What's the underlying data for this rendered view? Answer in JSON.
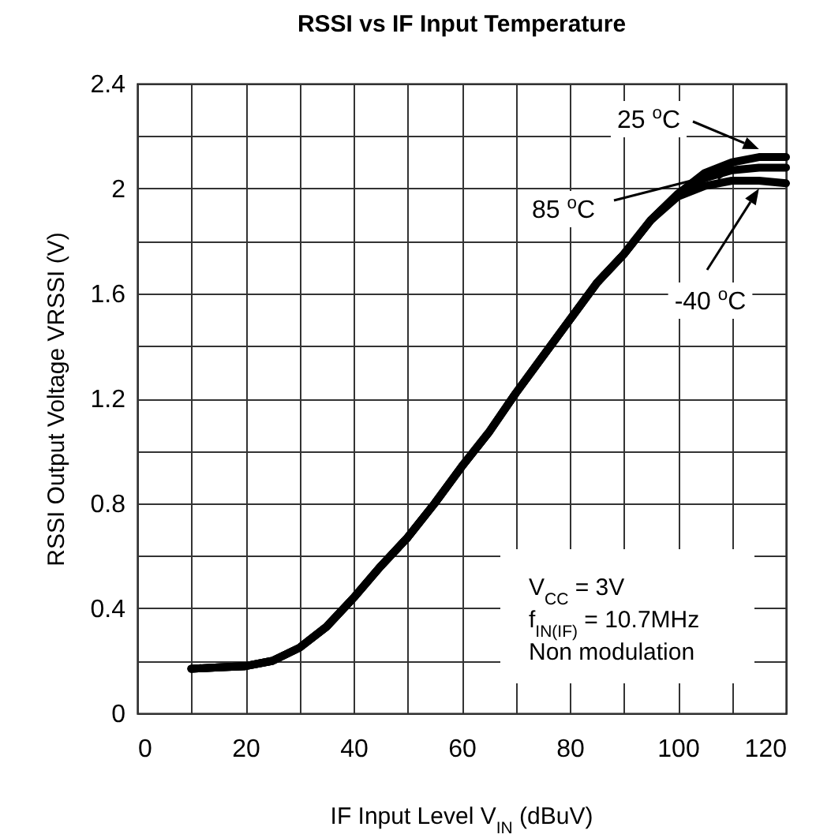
{
  "chart_data": {
    "type": "line",
    "title": "RSSI vs IF Input Temperature",
    "xlabel": "IF Input Level V$_{IN}$ (dBuV)",
    "ylabel": "RSSI Output Voltage VRSSI (V)",
    "x": [
      10,
      15,
      20,
      25,
      30,
      35,
      40,
      45,
      50,
      55,
      60,
      65,
      70,
      75,
      80,
      85,
      90,
      95,
      100,
      105,
      110,
      115,
      120
    ],
    "series": [
      {
        "name": "25 $^{o}$C",
        "color": "#000000",
        "values": [
          0.17,
          0.175,
          0.18,
          0.2,
          0.25,
          0.33,
          0.44,
          0.56,
          0.67,
          0.8,
          0.94,
          1.07,
          1.22,
          1.36,
          1.5,
          1.64,
          1.75,
          1.88,
          1.98,
          2.06,
          2.1,
          2.12,
          2.12
        ]
      },
      {
        "name": "85 $^{o}$C",
        "color": "#000000",
        "values": [
          0.17,
          0.175,
          0.18,
          0.2,
          0.25,
          0.33,
          0.44,
          0.56,
          0.67,
          0.8,
          0.94,
          1.07,
          1.22,
          1.36,
          1.5,
          1.64,
          1.75,
          1.88,
          1.98,
          2.04,
          2.07,
          2.08,
          2.08
        ]
      },
      {
        "name": "-40 $^{o}$C",
        "color": "#000000",
        "values": [
          0.17,
          0.175,
          0.18,
          0.2,
          0.25,
          0.33,
          0.44,
          0.56,
          0.67,
          0.8,
          0.94,
          1.07,
          1.22,
          1.36,
          1.5,
          1.64,
          1.75,
          1.88,
          1.97,
          2.01,
          2.03,
          2.03,
          2.02
        ]
      }
    ],
    "xlim": [
      0,
      120
    ],
    "xticks": [
      0,
      {
        "value": 10,
        "label": null
      },
      20,
      {
        "value": 30,
        "label": null
      },
      40,
      {
        "value": 50,
        "label": null
      },
      60,
      {
        "value": 70,
        "label": null
      },
      80,
      {
        "value": 90,
        "label": null
      },
      100,
      {
        "value": 110,
        "label": null
      },
      120
    ],
    "ylim": [
      0,
      2.4
    ],
    "yticks": [
      0,
      {
        "value": 0.2,
        "label": null
      },
      0.4,
      {
        "value": 0.6,
        "label": null
      },
      0.8,
      {
        "value": 1.0,
        "label": null
      },
      1.2,
      {
        "value": 1.4,
        "label": null
      },
      1.6,
      {
        "value": 1.8,
        "label": null
      },
      2,
      {
        "value": 2.2,
        "label": null
      },
      2.4
    ],
    "grid": true,
    "annotations": [
      "V$_{CC}$ = 3V",
      "f$_{IN(IF)}$ = 10.7MHz",
      "Non modulation"
    ]
  }
}
